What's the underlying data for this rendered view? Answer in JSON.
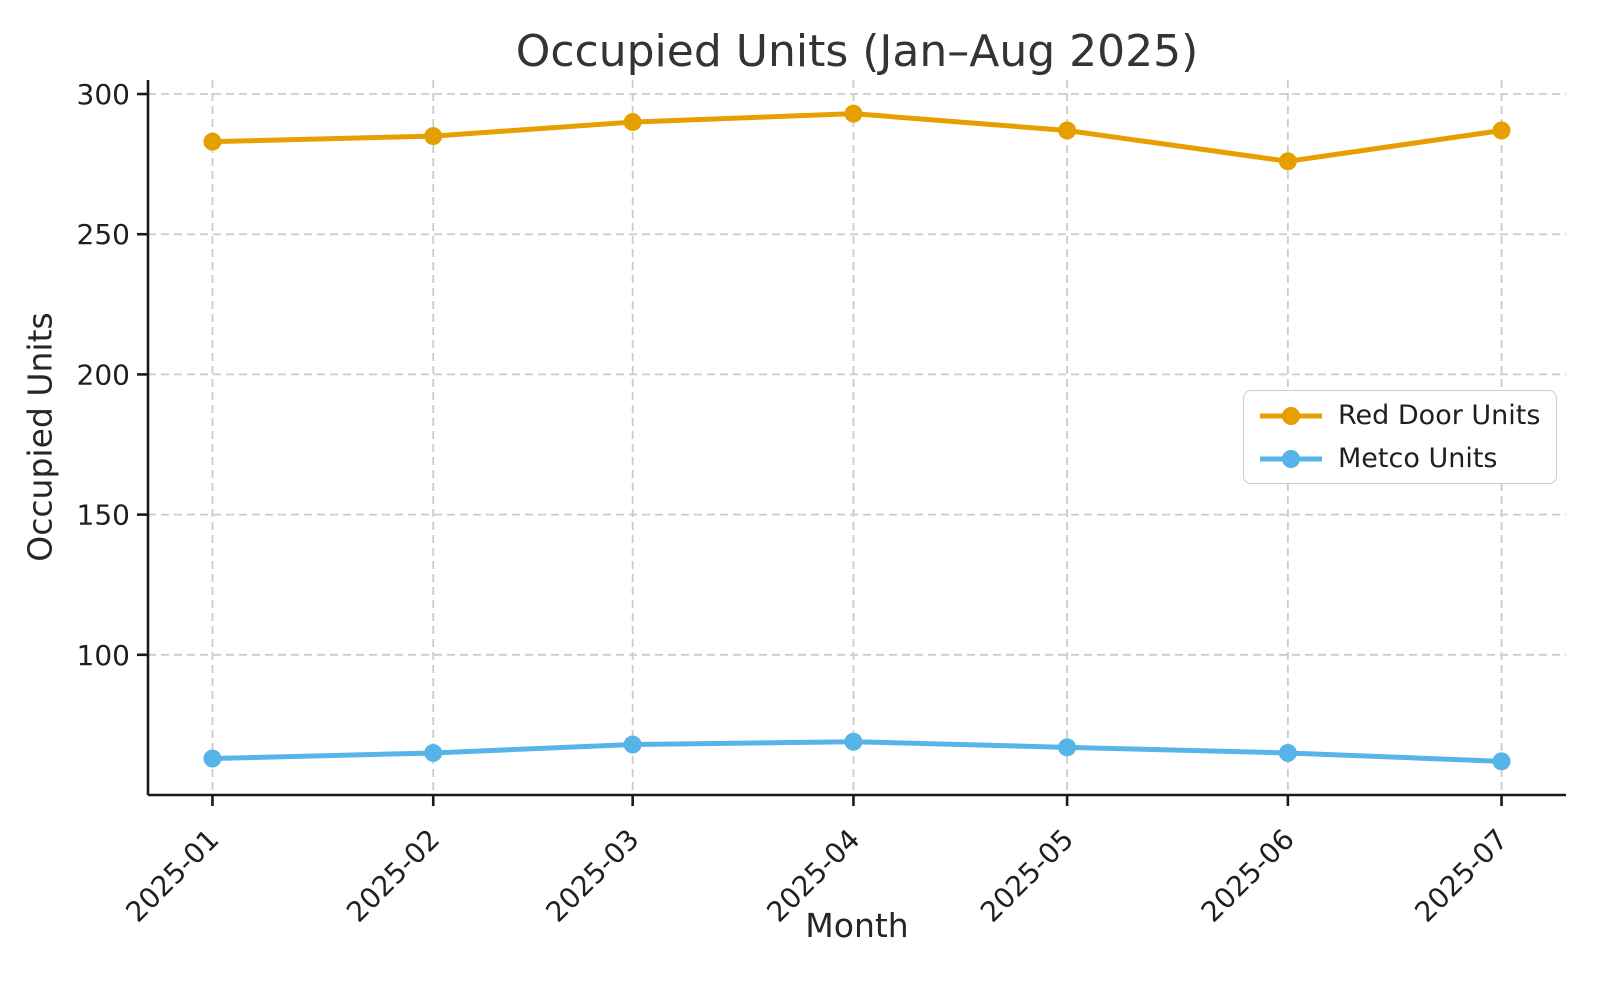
{
  "chart_data": {
    "type": "line",
    "title": "Occupied Units (Jan–Aug 2025)",
    "xlabel": "Month",
    "ylabel": "Occupied Units",
    "categories": [
      "2025-01",
      "2025-02",
      "2025-03",
      "2025-04",
      "2025-05",
      "2025-06",
      "2025-07"
    ],
    "x_day_offsets": [
      0,
      31,
      59,
      90,
      120,
      151,
      181
    ],
    "series": [
      {
        "name": "Red Door Units",
        "color": "#E69F00",
        "values": [
          283,
          285,
          290,
          293,
          287,
          276,
          287
        ]
      },
      {
        "name": "Metco Units",
        "color": "#56B4E9",
        "values": [
          63,
          65,
          68,
          69,
          67,
          65,
          62
        ]
      }
    ],
    "y_ticks": [
      100,
      150,
      200,
      250,
      300
    ],
    "ylim": [
      50,
      305
    ],
    "grid": true,
    "grid_style": "dashed",
    "legend_position": "center right",
    "styles": {
      "grid_color": "#cccccc",
      "spine_color": "#1a1a1a",
      "tick_text_color": "#1f1f1f",
      "line_width": 5,
      "marker_radius": 9
    }
  }
}
